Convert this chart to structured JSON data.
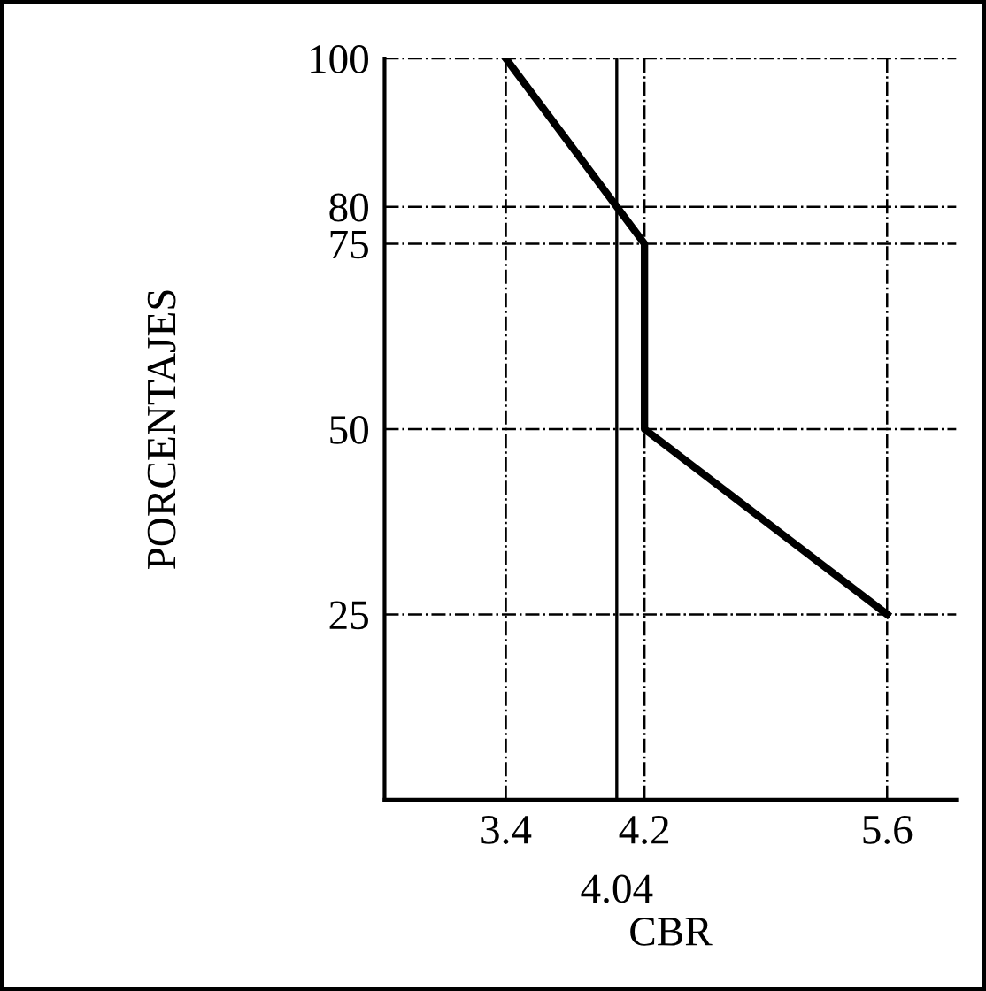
{
  "chart_data": {
    "type": "line",
    "xlabel": "CBR",
    "ylabel": "PORCENTAJES",
    "x": [
      3.4,
      4.2,
      4.2,
      5.6
    ],
    "series": [
      {
        "color": "#000000",
        "values": [
          100,
          75,
          50,
          25
        ]
      }
    ],
    "xlim": [
      2.7,
      6.0
    ],
    "xticks": [
      3.4,
      4.2,
      5.6
    ],
    "ref_lines": [
      {
        "axis": "x",
        "value": 4.04,
        "label": "4.04",
        "color": "#000000",
        "line_style": "solid"
      }
    ],
    "ylim": [
      0,
      100
    ],
    "yticks": [
      25,
      50,
      75,
      80,
      100
    ],
    "grid": true,
    "marker": "none",
    "line_style": "solid",
    "legend": false
  }
}
